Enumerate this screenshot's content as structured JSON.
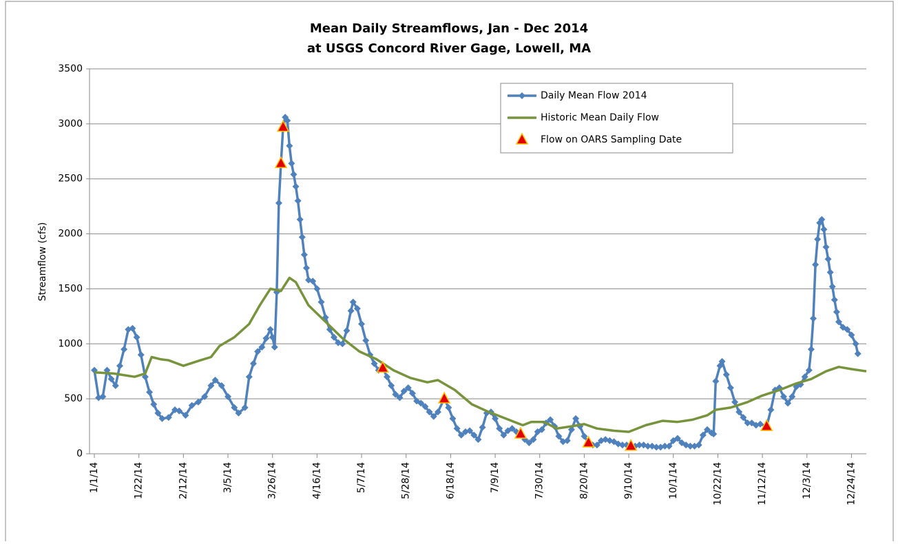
{
  "chart_data": {
    "type": "line",
    "title": "Mean Daily Streamflows, Jan - Dec 2014",
    "subtitle": "at USGS Concord River Gage, Lowell, MA",
    "y_label": "Streamflow (cfs)",
    "xlim": [
      "1/1/14",
      "12/31/14"
    ],
    "xticks": [
      "1/1/14",
      "1/22/14",
      "2/12/14",
      "3/5/14",
      "3/26/14",
      "4/16/14",
      "5/7/14",
      "5/28/14",
      "6/18/14",
      "7/9/14",
      "7/30/14",
      "8/20/14",
      "9/10/14",
      "10/1/14",
      "10/22/14",
      "11/12/14",
      "12/3/14",
      "12/24/14"
    ],
    "ylim": [
      0,
      3500
    ],
    "yticks": [
      0,
      500,
      1000,
      1500,
      2000,
      2500,
      3000,
      3500
    ],
    "grid": true,
    "legend": "top-right",
    "series": [
      {
        "name": "Daily Mean Flow 2014",
        "color": "#4f81bd",
        "marker": "diamond",
        "line": true,
        "x": [
          "1/1/14",
          "1/3/14",
          "1/5/14",
          "1/7/14",
          "1/9/14",
          "1/11/14",
          "1/13/14",
          "1/15/14",
          "1/17/14",
          "1/19/14",
          "1/21/14",
          "1/23/14",
          "1/25/14",
          "1/27/14",
          "1/29/14",
          "1/31/14",
          "2/2/14",
          "2/5/14",
          "2/8/14",
          "2/10/14",
          "2/13/14",
          "2/16/14",
          "2/19/14",
          "2/22/14",
          "2/25/14",
          "2/27/14",
          "3/2/14",
          "3/5/14",
          "3/8/14",
          "3/10/14",
          "3/13/14",
          "3/15/14",
          "3/17/14",
          "3/19/14",
          "3/21/14",
          "3/23/14",
          "3/25/14",
          "3/26/14",
          "3/27/14",
          "3/28/14",
          "3/29/14",
          "3/30/14",
          "3/31/14",
          "4/1/14",
          "4/2/14",
          "4/3/14",
          "4/4/14",
          "4/5/14",
          "4/6/14",
          "4/7/14",
          "4/8/14",
          "4/9/14",
          "4/10/14",
          "4/11/14",
          "4/12/14",
          "4/14/14",
          "4/16/14",
          "4/18/14",
          "4/20/14",
          "4/22/14",
          "4/24/14",
          "4/26/14",
          "4/28/14",
          "4/30/14",
          "5/2/14",
          "5/3/14",
          "5/5/14",
          "5/7/14",
          "5/9/14",
          "5/11/14",
          "5/13/14",
          "5/15/14",
          "5/17/14",
          "5/19/14",
          "5/21/14",
          "5/23/14",
          "5/25/14",
          "5/27/14",
          "5/29/14",
          "5/31/14",
          "6/2/14",
          "6/4/14",
          "6/6/14",
          "6/8/14",
          "6/10/14",
          "6/12/14",
          "6/15/14",
          "6/17/14",
          "6/19/14",
          "6/21/14",
          "6/23/14",
          "6/25/14",
          "6/27/14",
          "6/29/14",
          "7/1/14",
          "7/3/14",
          "7/5/14",
          "7/7/14",
          "7/9/14",
          "7/11/14",
          "7/13/14",
          "7/15/14",
          "7/17/14",
          "7/19/14",
          "7/21/14",
          "7/23/14",
          "7/25/14",
          "7/27/14",
          "7/29/14",
          "7/31/14",
          "8/2/14",
          "8/4/14",
          "8/6/14",
          "8/8/14",
          "8/10/14",
          "8/12/14",
          "8/14/14",
          "8/16/14",
          "8/18/14",
          "8/20/14",
          "8/22/14",
          "8/24/14",
          "8/26/14",
          "8/28/14",
          "8/30/14",
          "9/1/14",
          "9/3/14",
          "9/5/14",
          "9/7/14",
          "9/9/14",
          "9/11/14",
          "9/13/14",
          "9/15/14",
          "9/17/14",
          "9/19/14",
          "9/21/14",
          "9/23/14",
          "9/25/14",
          "9/27/14",
          "9/29/14",
          "10/1/14",
          "10/3/14",
          "10/5/14",
          "10/7/14",
          "10/9/14",
          "10/11/14",
          "10/13/14",
          "10/15/14",
          "10/17/14",
          "10/19/14",
          "10/20/14",
          "10/21/14",
          "10/23/14",
          "10/24/14",
          "10/26/14",
          "10/28/14",
          "10/30/14",
          "11/1/14",
          "11/3/14",
          "11/5/14",
          "11/7/14",
          "11/9/14",
          "11/11/14",
          "11/14/14",
          "11/16/14",
          "11/18/14",
          "11/20/14",
          "11/22/14",
          "11/24/14",
          "11/26/14",
          "11/28/14",
          "11/30/14",
          "12/2/14",
          "12/4/14",
          "12/5/14",
          "12/6/14",
          "12/7/14",
          "12/8/14",
          "12/9/14",
          "12/10/14",
          "12/11/14",
          "12/12/14",
          "12/13/14",
          "12/14/14",
          "12/15/14",
          "12/16/14",
          "12/17/14",
          "12/18/14",
          "12/20/14",
          "12/22/14",
          "12/24/14",
          "12/26/14",
          "12/27/14"
        ],
        "values": [
          760,
          510,
          520,
          760,
          680,
          620,
          800,
          950,
          1130,
          1140,
          1060,
          900,
          700,
          560,
          450,
          370,
          320,
          330,
          400,
          390,
          350,
          440,
          470,
          520,
          620,
          670,
          620,
          520,
          420,
          370,
          420,
          700,
          820,
          930,
          970,
          1050,
          1130,
          1060,
          970,
          1470,
          2280,
          2640,
          2970,
          3060,
          3030,
          2800,
          2640,
          2540,
          2430,
          2300,
          2130,
          1970,
          1810,
          1690,
          1580,
          1570,
          1500,
          1380,
          1240,
          1130,
          1060,
          1010,
          1000,
          1120,
          1300,
          1380,
          1320,
          1180,
          1030,
          900,
          820,
          760,
          780,
          700,
          620,
          540,
          510,
          570,
          600,
          550,
          480,
          460,
          430,
          380,
          340,
          380,
          500,
          420,
          320,
          230,
          170,
          200,
          210,
          170,
          130,
          240,
          370,
          380,
          320,
          230,
          170,
          210,
          230,
          200,
          180,
          130,
          100,
          130,
          200,
          220,
          280,
          310,
          250,
          160,
          110,
          120,
          220,
          320,
          250,
          160,
          100,
          80,
          80,
          120,
          130,
          120,
          110,
          90,
          80,
          80,
          70,
          70,
          80,
          80,
          70,
          70,
          60,
          60,
          70,
          70,
          120,
          140,
          100,
          80,
          70,
          70,
          80,
          170,
          220,
          190,
          180,
          660,
          800,
          840,
          720,
          600,
          470,
          380,
          330,
          280,
          280,
          260,
          270,
          250,
          400,
          580,
          600,
          520,
          460,
          520,
          610,
          630,
          700,
          760,
          950,
          1230,
          1720,
          1950,
          2100,
          2130,
          2040,
          1880,
          1770,
          1650,
          1520,
          1400,
          1290,
          1200,
          1150,
          1130,
          1080,
          1000,
          910
        ]
      },
      {
        "name": "Historic Mean Daily Flow",
        "color": "#77933c",
        "marker": "none",
        "line": true,
        "x": [
          "1/1/14",
          "1/10/14",
          "1/20/14",
          "1/25/14",
          "1/28/14",
          "2/1/14",
          "2/5/14",
          "2/12/14",
          "2/20/14",
          "2/25/14",
          "3/1/14",
          "3/8/14",
          "3/15/14",
          "3/20/14",
          "3/25/14",
          "3/30/14",
          "4/3/14",
          "4/6/14",
          "4/12/14",
          "4/20/14",
          "4/28/14",
          "5/6/14",
          "5/14/14",
          "5/22/14",
          "5/30/14",
          "6/7/14",
          "6/12/14",
          "6/20/14",
          "6/28/14",
          "7/6/14",
          "7/14/14",
          "7/22/14",
          "7/26/14",
          "8/1/14",
          "8/7/14",
          "8/14/14",
          "8/20/14",
          "8/26/14",
          "9/3/14",
          "9/10/14",
          "9/18/14",
          "9/26/14",
          "10/3/14",
          "10/10/14",
          "10/17/14",
          "10/21/14",
          "10/28/14",
          "11/5/14",
          "11/12/14",
          "11/20/14",
          "11/28/14",
          "12/5/14",
          "12/12/14",
          "12/18/14",
          "12/24/14",
          "12/31/14"
        ],
        "values": [
          740,
          730,
          700,
          730,
          880,
          860,
          850,
          800,
          850,
          880,
          980,
          1060,
          1180,
          1350,
          1500,
          1480,
          1600,
          1560,
          1350,
          1200,
          1050,
          930,
          860,
          760,
          690,
          650,
          670,
          580,
          450,
          380,
          320,
          260,
          290,
          290,
          230,
          250,
          270,
          230,
          210,
          200,
          260,
          300,
          290,
          310,
          350,
          400,
          420,
          470,
          530,
          580,
          640,
          680,
          750,
          790,
          770,
          750
        ]
      },
      {
        "name": "Flow on OARS Sampling Date",
        "color": "#e00000",
        "marker": "triangle",
        "line": false,
        "x": [
          "3/30/14",
          "3/31/14",
          "5/17/14",
          "6/15/14",
          "7/21/14",
          "8/22/14",
          "9/11/14",
          "11/14/14"
        ],
        "values": [
          2640,
          2970,
          780,
          500,
          180,
          100,
          70,
          250
        ]
      }
    ]
  }
}
